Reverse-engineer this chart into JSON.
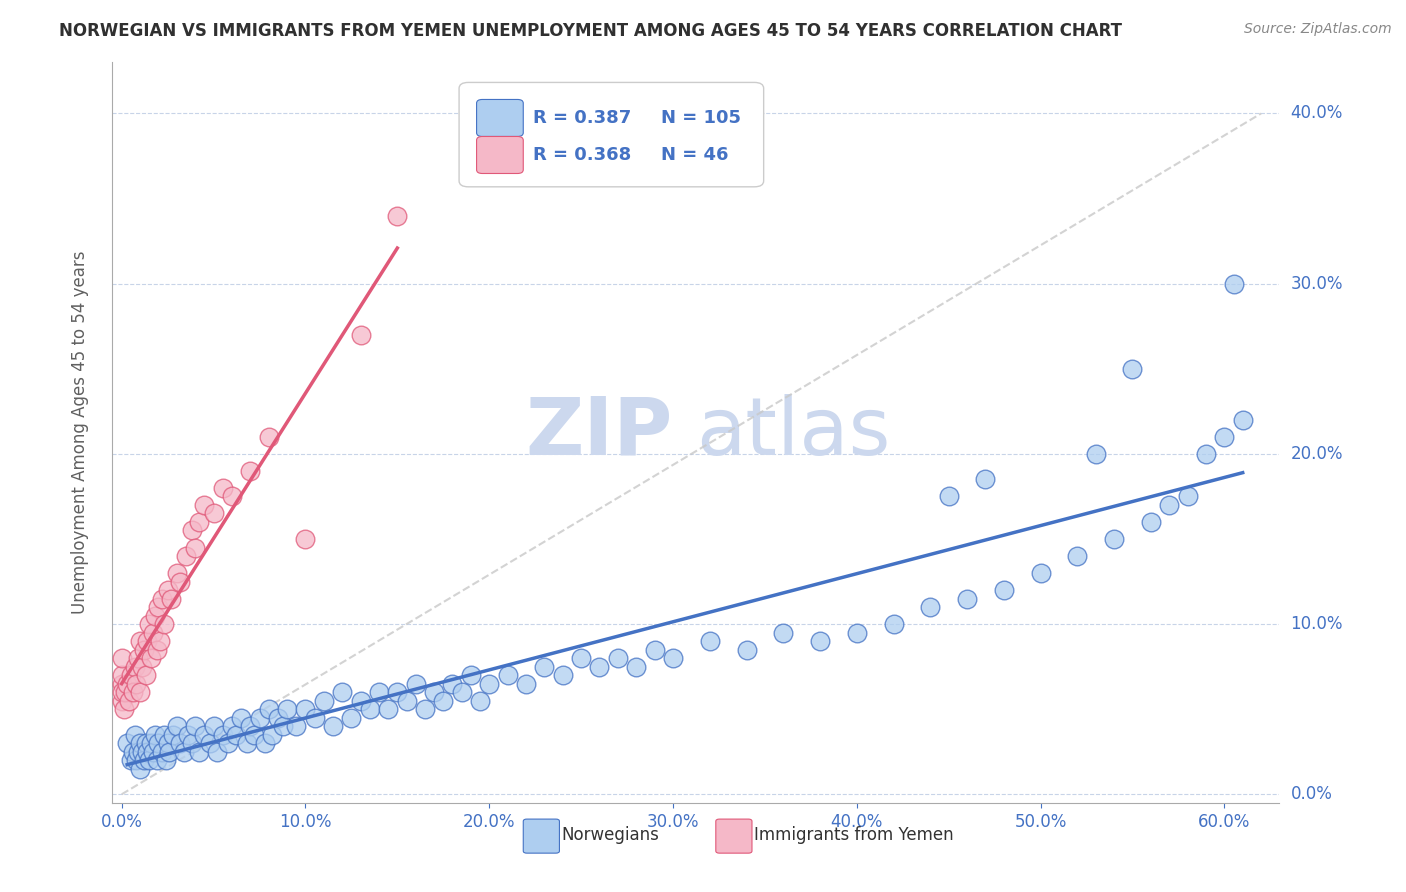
{
  "title": "NORWEGIAN VS IMMIGRANTS FROM YEMEN UNEMPLOYMENT AMONG AGES 45 TO 54 YEARS CORRELATION CHART",
  "source": "Source: ZipAtlas.com",
  "xlim": [
    -0.005,
    0.63
  ],
  "ylim": [
    -0.005,
    0.43
  ],
  "ytick_right_labels": [
    "0.0%",
    "10.0%",
    "20.0%",
    "30.0%",
    "40.0%"
  ],
  "ytick_right_vals": [
    0.0,
    0.1,
    0.2,
    0.3,
    0.4
  ],
  "xtick_labels": [
    "0.0%",
    "10.0%",
    "20.0%",
    "30.0%",
    "40.0%",
    "50.0%",
    "60.0%"
  ],
  "xtick_vals": [
    0.0,
    0.1,
    0.2,
    0.3,
    0.4,
    0.5,
    0.6
  ],
  "norwegian_R": 0.387,
  "norwegian_N": 105,
  "immigrant_R": 0.368,
  "immigrant_N": 46,
  "norwegian_color": "#aecef0",
  "immigrant_color": "#f5b8c8",
  "norwegian_line_color": "#4472c4",
  "immigrant_line_color": "#e05878",
  "trend_line_color": "#c8c8c8",
  "ylabel": "Unemployment Among Ages 45 to 54 years",
  "legend_label_norwegian": "Norwegians",
  "legend_label_immigrant": "Immigrants from Yemen",
  "watermark_zip": "ZIP",
  "watermark_atlas": "atlas",
  "watermark_color": "#ccd8ee",
  "background_color": "#ffffff",
  "grid_color": "#c8d4e8",
  "title_color": "#303030",
  "axis_tick_color": "#4472c4",
  "ylabel_color": "#606060",
  "legend_value_color": "#4472c4",
  "source_color": "#888888",
  "nor_x": [
    0.003,
    0.005,
    0.006,
    0.007,
    0.008,
    0.009,
    0.01,
    0.01,
    0.011,
    0.012,
    0.013,
    0.014,
    0.015,
    0.016,
    0.017,
    0.018,
    0.019,
    0.02,
    0.022,
    0.023,
    0.024,
    0.025,
    0.026,
    0.028,
    0.03,
    0.032,
    0.034,
    0.036,
    0.038,
    0.04,
    0.042,
    0.045,
    0.048,
    0.05,
    0.052,
    0.055,
    0.058,
    0.06,
    0.062,
    0.065,
    0.068,
    0.07,
    0.072,
    0.075,
    0.078,
    0.08,
    0.082,
    0.085,
    0.088,
    0.09,
    0.095,
    0.1,
    0.105,
    0.11,
    0.115,
    0.12,
    0.125,
    0.13,
    0.135,
    0.14,
    0.145,
    0.15,
    0.155,
    0.16,
    0.165,
    0.17,
    0.175,
    0.18,
    0.185,
    0.19,
    0.195,
    0.2,
    0.21,
    0.22,
    0.23,
    0.24,
    0.25,
    0.26,
    0.27,
    0.28,
    0.29,
    0.3,
    0.32,
    0.34,
    0.36,
    0.38,
    0.4,
    0.42,
    0.44,
    0.46,
    0.48,
    0.5,
    0.52,
    0.54,
    0.56,
    0.57,
    0.58,
    0.59,
    0.6,
    0.61,
    0.45,
    0.47,
    0.53,
    0.55,
    0.605
  ],
  "nor_y": [
    0.03,
    0.02,
    0.025,
    0.035,
    0.02,
    0.025,
    0.03,
    0.015,
    0.025,
    0.02,
    0.03,
    0.025,
    0.02,
    0.03,
    0.025,
    0.035,
    0.02,
    0.03,
    0.025,
    0.035,
    0.02,
    0.03,
    0.025,
    0.035,
    0.04,
    0.03,
    0.025,
    0.035,
    0.03,
    0.04,
    0.025,
    0.035,
    0.03,
    0.04,
    0.025,
    0.035,
    0.03,
    0.04,
    0.035,
    0.045,
    0.03,
    0.04,
    0.035,
    0.045,
    0.03,
    0.05,
    0.035,
    0.045,
    0.04,
    0.05,
    0.04,
    0.05,
    0.045,
    0.055,
    0.04,
    0.06,
    0.045,
    0.055,
    0.05,
    0.06,
    0.05,
    0.06,
    0.055,
    0.065,
    0.05,
    0.06,
    0.055,
    0.065,
    0.06,
    0.07,
    0.055,
    0.065,
    0.07,
    0.065,
    0.075,
    0.07,
    0.08,
    0.075,
    0.08,
    0.075,
    0.085,
    0.08,
    0.09,
    0.085,
    0.095,
    0.09,
    0.095,
    0.1,
    0.11,
    0.115,
    0.12,
    0.13,
    0.14,
    0.15,
    0.16,
    0.17,
    0.175,
    0.2,
    0.21,
    0.22,
    0.175,
    0.185,
    0.2,
    0.25,
    0.3
  ],
  "imm_x": [
    0.0,
    0.0,
    0.0,
    0.0,
    0.0,
    0.001,
    0.002,
    0.003,
    0.004,
    0.005,
    0.006,
    0.007,
    0.008,
    0.009,
    0.01,
    0.01,
    0.011,
    0.012,
    0.013,
    0.014,
    0.015,
    0.016,
    0.017,
    0.018,
    0.019,
    0.02,
    0.021,
    0.022,
    0.023,
    0.025,
    0.027,
    0.03,
    0.032,
    0.035,
    0.038,
    0.04,
    0.042,
    0.045,
    0.05,
    0.055,
    0.06,
    0.07,
    0.08,
    0.1,
    0.13,
    0.15
  ],
  "imm_y": [
    0.055,
    0.065,
    0.07,
    0.08,
    0.06,
    0.05,
    0.06,
    0.065,
    0.055,
    0.07,
    0.06,
    0.075,
    0.065,
    0.08,
    0.09,
    0.06,
    0.075,
    0.085,
    0.07,
    0.09,
    0.1,
    0.08,
    0.095,
    0.105,
    0.085,
    0.11,
    0.09,
    0.115,
    0.1,
    0.12,
    0.115,
    0.13,
    0.125,
    0.14,
    0.155,
    0.145,
    0.16,
    0.17,
    0.165,
    0.18,
    0.175,
    0.19,
    0.21,
    0.15,
    0.27,
    0.34
  ]
}
